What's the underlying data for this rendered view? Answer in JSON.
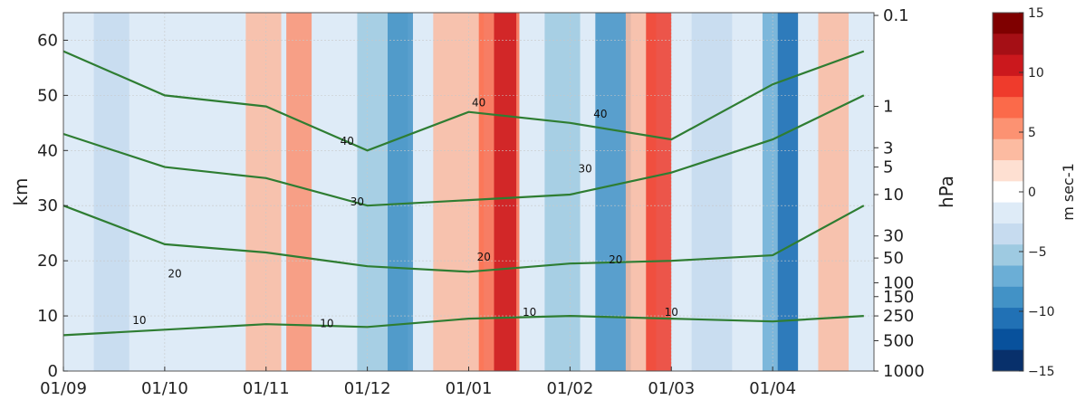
{
  "chart_data": {
    "type": "heatmap",
    "xlabel": "",
    "ylabel": "km",
    "y2label": "hPa",
    "x_ticks": [
      "01/09",
      "01/10",
      "01/11",
      "01/12",
      "01/01",
      "01/02",
      "01/03",
      "01/04"
    ],
    "ylim": [
      0,
      65
    ],
    "y_ticks": [
      0,
      10,
      20,
      30,
      40,
      50,
      60
    ],
    "pressure_ticks": [
      {
        "label": "0.1",
        "km": 64.5
      },
      {
        "label": "1",
        "km": 48
      },
      {
        "label": "3",
        "km": 40.5
      },
      {
        "label": "5",
        "km": 37
      },
      {
        "label": "10",
        "km": 32
      },
      {
        "label": "30",
        "km": 24.5
      },
      {
        "label": "50",
        "km": 20.5
      },
      {
        "label": "100",
        "km": 16
      },
      {
        "label": "150",
        "km": 13.5
      },
      {
        "label": "250",
        "km": 10
      },
      {
        "label": "500",
        "km": 5.5
      },
      {
        "label": "1000",
        "km": 0
      }
    ],
    "colorbar": {
      "label": "m sec-1",
      "range": [
        -15,
        15
      ],
      "ticks": [
        "15",
        "10",
        "5",
        "0",
        "−5",
        "−10",
        "−15"
      ],
      "colors": [
        "#7f0000",
        "#a50f15",
        "#cb181d",
        "#ef3b2c",
        "#fb6a4a",
        "#fc9272",
        "#fcbba1",
        "#fee0d2",
        "#ffffff",
        "#deebf7",
        "#c6dbef",
        "#9ecae1",
        "#6baed6",
        "#4292c6",
        "#2171b5",
        "#08519c",
        "#08306b"
      ]
    },
    "anomaly_bands": [
      {
        "x": 0.3,
        "w": 0.35,
        "color": "#c6dbef"
      },
      {
        "x": 1.8,
        "w": 0.35,
        "color": "#fcbba1"
      },
      {
        "x": 2.2,
        "w": 0.25,
        "color": "#fc9272"
      },
      {
        "x": 2.9,
        "w": 0.5,
        "color": "#9ecae1"
      },
      {
        "x": 3.2,
        "w": 0.25,
        "color": "#4292c6"
      },
      {
        "x": 3.65,
        "w": 0.5,
        "color": "#fcbba1"
      },
      {
        "x": 4.1,
        "w": 0.4,
        "color": "#fb6a4a"
      },
      {
        "x": 4.25,
        "w": 0.22,
        "color": "#cb181d"
      },
      {
        "x": 4.75,
        "w": 0.35,
        "color": "#9ecae1"
      },
      {
        "x": 5.25,
        "w": 0.35,
        "color": "#4292c6"
      },
      {
        "x": 5.55,
        "w": 0.3,
        "color": "#fcbba1"
      },
      {
        "x": 5.75,
        "w": 0.25,
        "color": "#ef3b2c"
      },
      {
        "x": 6.2,
        "w": 0.4,
        "color": "#c6dbef"
      },
      {
        "x": 6.9,
        "w": 0.35,
        "color": "#6baed6"
      },
      {
        "x": 7.05,
        "w": 0.2,
        "color": "#2171b5"
      },
      {
        "x": 7.45,
        "w": 0.3,
        "color": "#fcbba1"
      }
    ],
    "wind_contours": [
      {
        "label": "10",
        "points": [
          [
            0.0,
            6.5
          ],
          [
            1.0,
            7.5
          ],
          [
            2.0,
            8.5
          ],
          [
            3.0,
            8.0
          ],
          [
            4.0,
            9.5
          ],
          [
            5.0,
            10.0
          ],
          [
            6.0,
            9.5
          ],
          [
            7.0,
            9.0
          ],
          [
            7.9,
            10.0
          ]
        ]
      },
      {
        "label": "20",
        "points": [
          [
            0.0,
            30.0
          ],
          [
            1.0,
            23.0
          ],
          [
            2.0,
            21.5
          ],
          [
            3.0,
            19.0
          ],
          [
            4.0,
            18.0
          ],
          [
            5.0,
            19.5
          ],
          [
            6.0,
            20.0
          ],
          [
            7.0,
            21.0
          ],
          [
            7.9,
            30.0
          ]
        ]
      },
      {
        "label": "30",
        "points": [
          [
            0.0,
            43.0
          ],
          [
            1.0,
            37.0
          ],
          [
            2.0,
            35.0
          ],
          [
            3.0,
            30.0
          ],
          [
            4.0,
            31.0
          ],
          [
            5.0,
            32.0
          ],
          [
            6.0,
            36.0
          ],
          [
            7.0,
            42.0
          ],
          [
            7.9,
            50.0
          ]
        ]
      },
      {
        "label": "40",
        "points": [
          [
            0.0,
            58.0
          ],
          [
            1.0,
            50.0
          ],
          [
            2.0,
            48.0
          ],
          [
            3.0,
            40.0
          ],
          [
            4.0,
            47.0
          ],
          [
            5.0,
            45.0
          ],
          [
            6.0,
            42.0
          ],
          [
            7.0,
            52.0
          ],
          [
            7.9,
            58.0
          ]
        ]
      }
    ],
    "contour_labels": [
      {
        "text": "10",
        "x": 0.75,
        "y": 8.5
      },
      {
        "text": "10",
        "x": 2.6,
        "y": 8.0
      },
      {
        "text": "10",
        "x": 4.6,
        "y": 10.0
      },
      {
        "text": "10",
        "x": 6.0,
        "y": 10.0
      },
      {
        "text": "20",
        "x": 1.1,
        "y": 17.0
      },
      {
        "text": "20",
        "x": 4.15,
        "y": 20.0
      },
      {
        "text": "20",
        "x": 5.45,
        "y": 19.5
      },
      {
        "text": "30",
        "x": 2.9,
        "y": 30.0
      },
      {
        "text": "30",
        "x": 5.15,
        "y": 36.0
      },
      {
        "text": "40",
        "x": 2.8,
        "y": 41.0
      },
      {
        "text": "40",
        "x": 4.1,
        "y": 48.0
      },
      {
        "text": "40",
        "x": 5.3,
        "y": 46.0
      }
    ]
  }
}
